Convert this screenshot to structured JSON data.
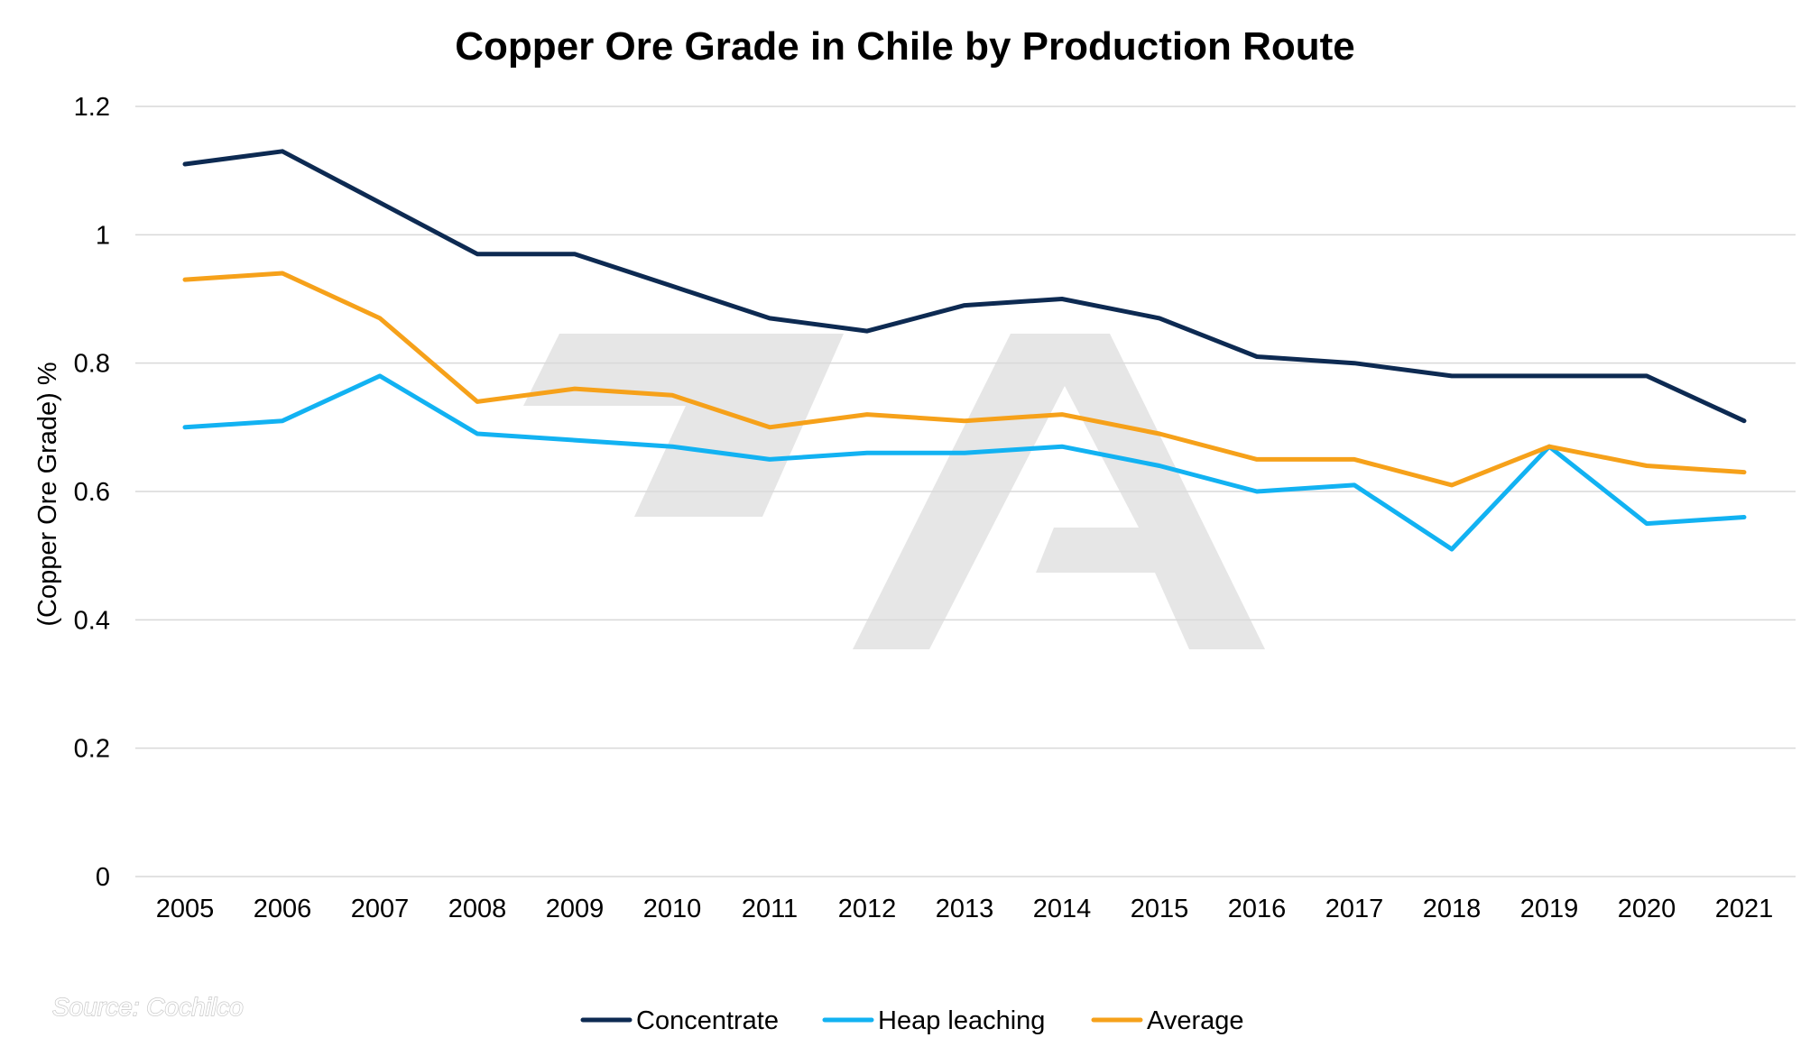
{
  "chart_data": {
    "type": "line",
    "title": "Copper Ore Grade in Chile by Production Route",
    "xlabel": "",
    "ylabel": "(Copper Ore Grade) %",
    "ylim": [
      0,
      1.2
    ],
    "yticks": [
      "0",
      "0.2",
      "0.4",
      "0.6",
      "0.8",
      "1",
      "1.2"
    ],
    "grid": true,
    "legend_position": "bottom",
    "categories": [
      "2005",
      "2006",
      "2007",
      "2008",
      "2009",
      "2010",
      "2011",
      "2012",
      "2013",
      "2014",
      "2015",
      "2016",
      "2017",
      "2018",
      "2019",
      "2020",
      "2021"
    ],
    "series": [
      {
        "name": "Concentrate",
        "color": "#0d2a52",
        "values": [
          1.11,
          1.13,
          1.05,
          0.97,
          0.97,
          0.92,
          0.87,
          0.85,
          0.89,
          0.9,
          0.87,
          0.81,
          0.8,
          0.78,
          0.78,
          0.78,
          0.71
        ]
      },
      {
        "name": "Heap leaching",
        "color": "#12b2f2",
        "values": [
          0.7,
          0.71,
          0.78,
          0.69,
          0.68,
          0.67,
          0.65,
          0.66,
          0.66,
          0.67,
          0.64,
          0.6,
          0.61,
          0.51,
          0.67,
          0.55,
          0.56
        ]
      },
      {
        "name": "Average",
        "color": "#f6a11a",
        "values": [
          0.93,
          0.94,
          0.87,
          0.74,
          0.76,
          0.75,
          0.7,
          0.72,
          0.71,
          0.72,
          0.69,
          0.65,
          0.65,
          0.61,
          0.67,
          0.64,
          0.63
        ]
      }
    ],
    "source": "Source: Cochilco"
  }
}
